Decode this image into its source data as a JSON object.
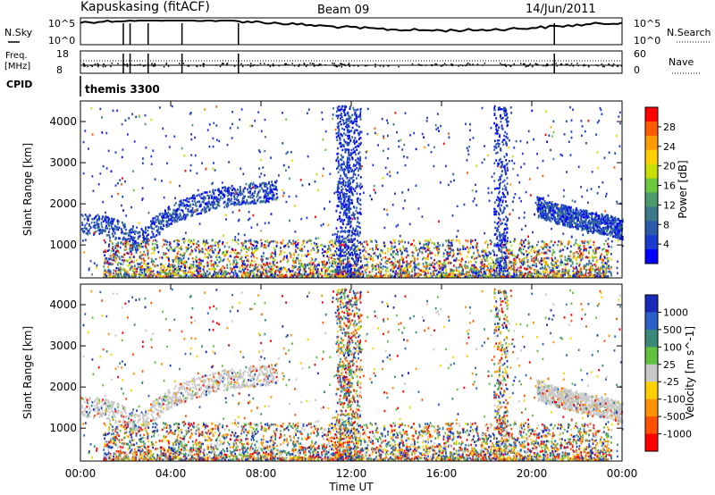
{
  "header": {
    "title": "Kapuskasing (fitACF)",
    "beam": "Beam 09",
    "date": "14/Jun/2011"
  },
  "noise_panel": {
    "left_label": "N.Sky",
    "left_ticks": [
      "10^5",
      "10^0"
    ],
    "right_ticks": [
      "10^5",
      "10^0"
    ],
    "right_label": "N.Search"
  },
  "freq_panel": {
    "left_label_1": "Freq.",
    "left_label_2": "[MHz]",
    "left_ticks": [
      "18",
      "8"
    ],
    "right_ticks": [
      "60",
      "0"
    ],
    "right_label": "Nave"
  },
  "cpid_panel": {
    "label": "CPID",
    "mode": "themis 3300"
  },
  "power_panel": {
    "ylabel": "Slant Range [km]",
    "yticks": [
      "4000",
      "3000",
      "2000",
      "1000"
    ],
    "colorbar_label": "Power [dB]",
    "colorbar_ticks": [
      "28",
      "24",
      "20",
      "16",
      "12",
      "8",
      "4"
    ],
    "colorbar_colors": [
      "#ff0000",
      "#ff5a00",
      "#ff9a00",
      "#ffd000",
      "#c8e000",
      "#6cc83c",
      "#4a9a6a",
      "#3a7a8a",
      "#2a5aa8",
      "#1a3ad0",
      "#0000ff"
    ]
  },
  "velocity_panel": {
    "ylabel": "Slant Range [km]",
    "yticks": [
      "4000",
      "3000",
      "2000",
      "1000"
    ],
    "colorbar_label": "Velocity [m s^-1]",
    "colorbar_ticks": [
      "1000",
      "500",
      "100",
      "25",
      "-25",
      "-100",
      "-500",
      "-1000"
    ],
    "colorbar_colors": [
      "#1a2ab8",
      "#2a60c8",
      "#3a8a7a",
      "#60c040",
      "#c8c8c8",
      "#ffd000",
      "#ff9000",
      "#ff5000",
      "#ff0000"
    ]
  },
  "xaxis": {
    "ticks": [
      "00:00",
      "04:00",
      "08:00",
      "12:00",
      "16:00",
      "20:00",
      "00:00"
    ],
    "label": "Time UT"
  },
  "chart_data": {
    "type": "heatmap",
    "title": "Kapuskasing (fitACF)",
    "subtitle": "Beam 09",
    "date": "14/Jun/2011",
    "xlabel": "Time UT",
    "ylabel": "Slant Range [km]",
    "x_range_hours": [
      0,
      24
    ],
    "y_range_km": [
      200,
      4500
    ],
    "power_colorbar_db": [
      4,
      8,
      12,
      16,
      20,
      24,
      28
    ],
    "velocity_colorbar_ms": [
      -1000,
      -500,
      -100,
      -25,
      25,
      100,
      500,
      1000
    ],
    "scatter_band": {
      "name": "",
      "x_hours": [
        0.0,
        1.0,
        2.0,
        2.5,
        3.0,
        4.0,
        5.0,
        6.0,
        7.0,
        8.0,
        8.7
      ],
      "y_km": [
        1550,
        1500,
        1300,
        1100,
        1350,
        1750,
        2000,
        2150,
        2250,
        2300,
        2350
      ]
    },
    "scatter_band_late": {
      "name": "",
      "x_hours": [
        20.2,
        21.0,
        22.0,
        23.0,
        24.0
      ],
      "y_km": [
        1950,
        1800,
        1650,
        1550,
        1400
      ]
    }
  }
}
